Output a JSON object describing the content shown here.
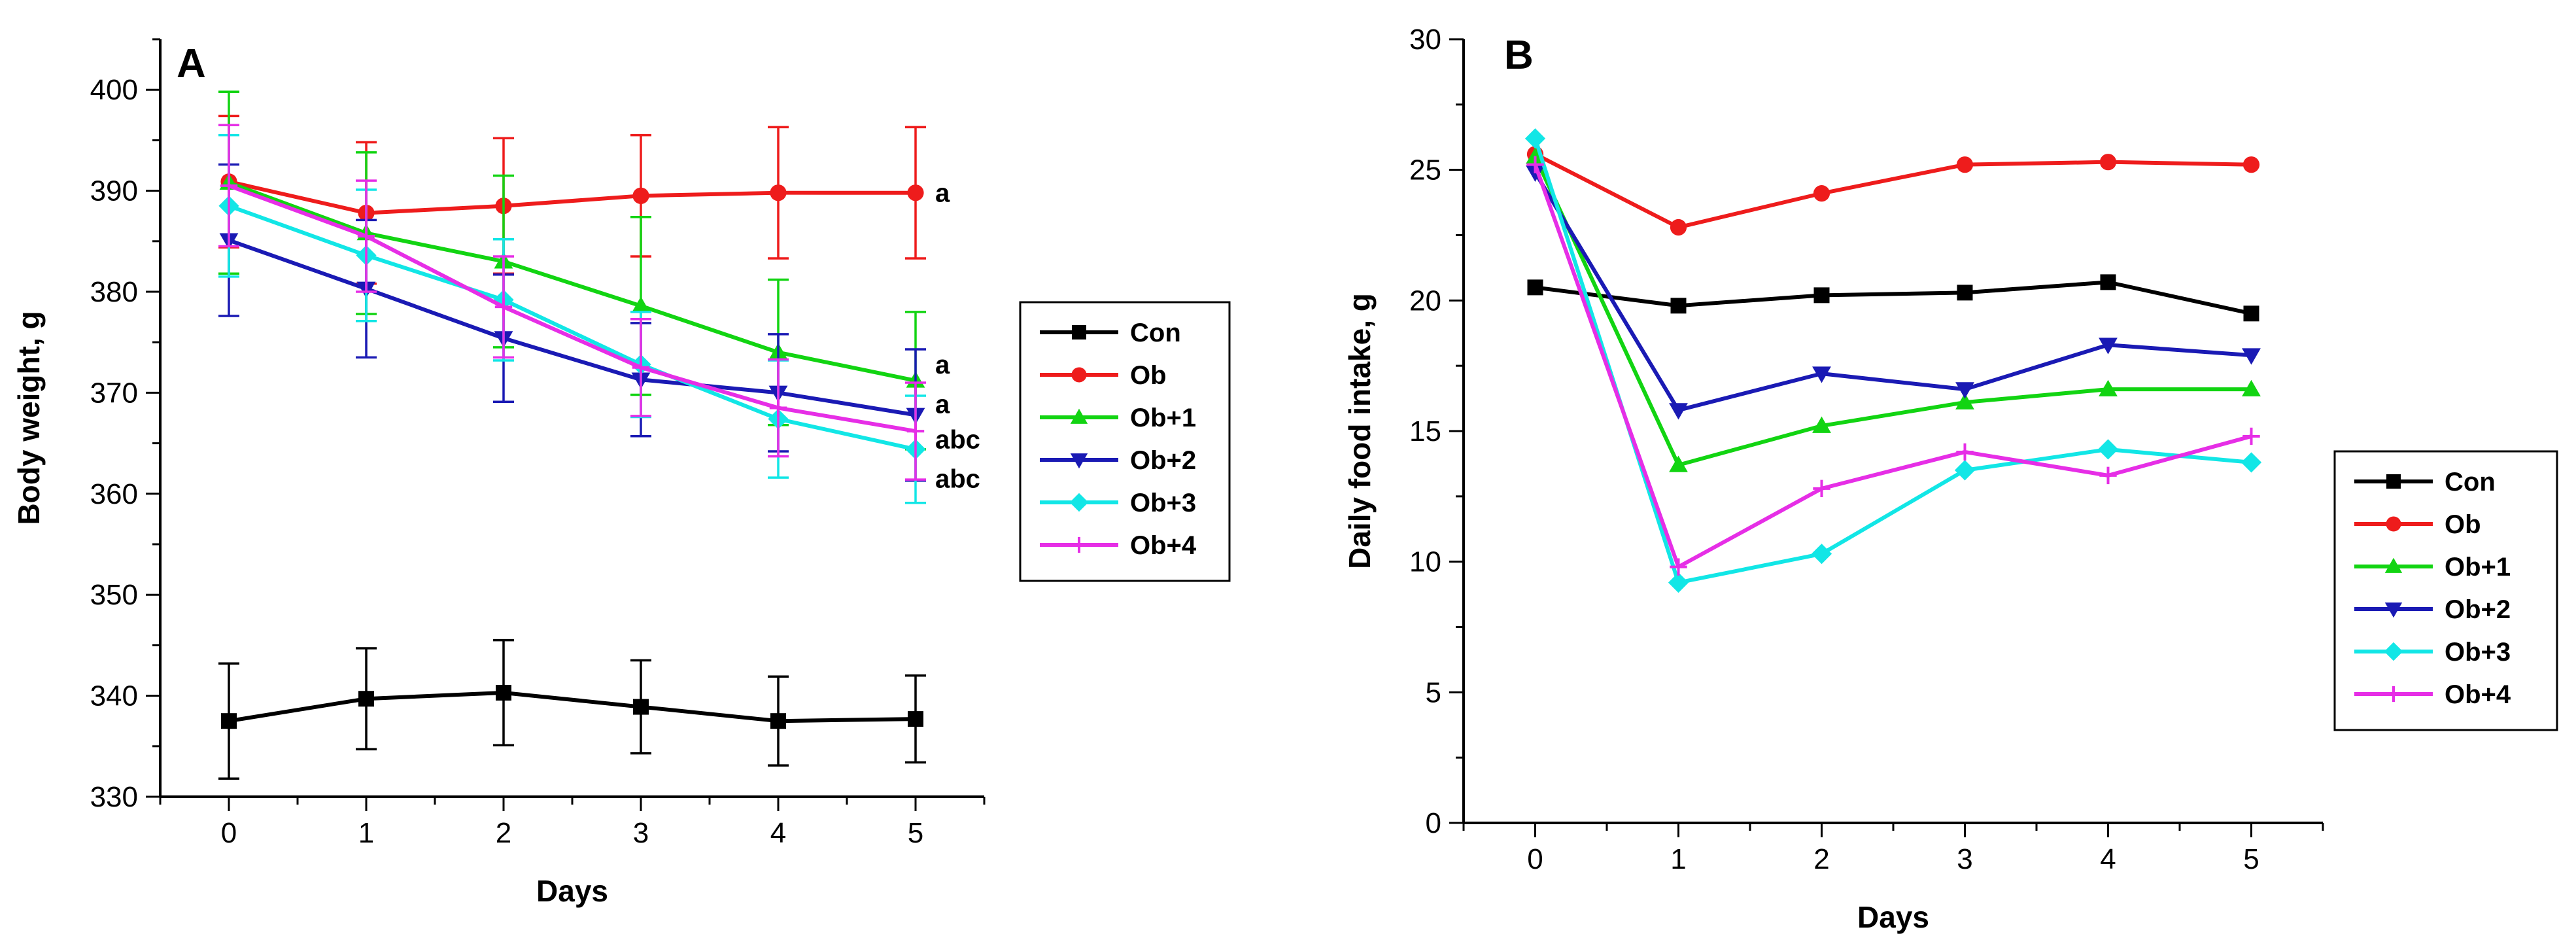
{
  "colors": {
    "Con": "#000000",
    "Ob": "#ee1c1c",
    "Ob+1": "#12d412",
    "Ob+2": "#1a1ab4",
    "Ob+3": "#12e6e6",
    "Ob+4": "#e62ee6"
  },
  "chart_data": [
    {
      "type": "line",
      "panel": "A",
      "title": "A",
      "xlabel": "Days",
      "ylabel": "Body weight, g",
      "x": [
        0,
        1,
        2,
        3,
        4,
        5
      ],
      "xlim": [
        -0.5,
        5.5
      ],
      "ylim": [
        330,
        405
      ],
      "xticks": [
        0,
        1,
        2,
        3,
        4,
        5
      ],
      "yticks": [
        330,
        340,
        350,
        360,
        370,
        380,
        390,
        400
      ],
      "legend_position": "right",
      "series": [
        {
          "name": "Con",
          "marker": "square",
          "values": [
            337.5,
            339.7,
            340.3,
            338.9,
            337.5,
            337.7
          ],
          "errors": [
            5.7,
            5.0,
            5.2,
            4.6,
            4.4,
            4.3
          ]
        },
        {
          "name": "Ob",
          "marker": "circle",
          "values": [
            390.9,
            387.8,
            388.5,
            389.5,
            389.8,
            389.8
          ],
          "errors": [
            6.5,
            7.0,
            6.7,
            6.0,
            6.5,
            6.5
          ]
        },
        {
          "name": "Ob+1",
          "marker": "triangle-up",
          "values": [
            390.8,
            385.8,
            383.0,
            378.6,
            374.0,
            371.2
          ],
          "errors": [
            9.0,
            8.0,
            8.5,
            8.8,
            7.2,
            6.8
          ]
        },
        {
          "name": "Ob+2",
          "marker": "triangle-down",
          "values": [
            385.1,
            380.3,
            375.4,
            371.3,
            370.0,
            367.8
          ],
          "errors": [
            7.5,
            6.8,
            6.3,
            5.6,
            5.8,
            6.5
          ]
        },
        {
          "name": "Ob+3",
          "marker": "diamond",
          "values": [
            388.5,
            383.6,
            379.2,
            372.8,
            367.4,
            364.4
          ],
          "errors": [
            7.0,
            6.5,
            6.0,
            5.2,
            5.8,
            5.3
          ]
        },
        {
          "name": "Ob+4",
          "marker": "plus",
          "values": [
            390.5,
            385.5,
            378.5,
            372.5,
            368.5,
            366.2
          ],
          "errors": [
            6.0,
            5.5,
            5.0,
            4.8,
            4.8,
            4.8
          ]
        }
      ],
      "annotations": [
        {
          "text": "a",
          "x": 5,
          "y": 389.8
        },
        {
          "text": "a",
          "x": 5,
          "y": 372.8
        },
        {
          "text": "a",
          "x": 5,
          "y": 368.9
        },
        {
          "text": "abc",
          "x": 5,
          "y": 365.4
        },
        {
          "text": "abc",
          "x": 5,
          "y": 361.5
        }
      ]
    },
    {
      "type": "line",
      "panel": "B",
      "title": "B",
      "xlabel": "Days",
      "ylabel": "Daily food intake, g",
      "x": [
        0,
        1,
        2,
        3,
        4,
        5
      ],
      "xlim": [
        -0.5,
        5.5
      ],
      "ylim": [
        0,
        30
      ],
      "xticks": [
        0,
        1,
        2,
        3,
        4,
        5
      ],
      "yticks": [
        0,
        5,
        10,
        15,
        20,
        25,
        30
      ],
      "legend_position": "bottom-right",
      "series": [
        {
          "name": "Con",
          "marker": "square",
          "values": [
            20.5,
            19.8,
            20.2,
            20.3,
            20.7,
            19.5
          ]
        },
        {
          "name": "Ob",
          "marker": "circle",
          "values": [
            25.6,
            22.8,
            24.1,
            25.2,
            25.3,
            25.2
          ]
        },
        {
          "name": "Ob+1",
          "marker": "triangle-up",
          "values": [
            25.5,
            13.7,
            15.2,
            16.1,
            16.6,
            16.6
          ]
        },
        {
          "name": "Ob+2",
          "marker": "triangle-down",
          "values": [
            24.9,
            15.8,
            17.2,
            16.6,
            18.3,
            17.9
          ]
        },
        {
          "name": "Ob+3",
          "marker": "diamond",
          "values": [
            26.2,
            9.2,
            10.3,
            13.5,
            14.3,
            13.8
          ]
        },
        {
          "name": "Ob+4",
          "marker": "plus",
          "values": [
            25.2,
            9.8,
            12.8,
            14.2,
            13.3,
            14.8
          ]
        }
      ]
    }
  ]
}
